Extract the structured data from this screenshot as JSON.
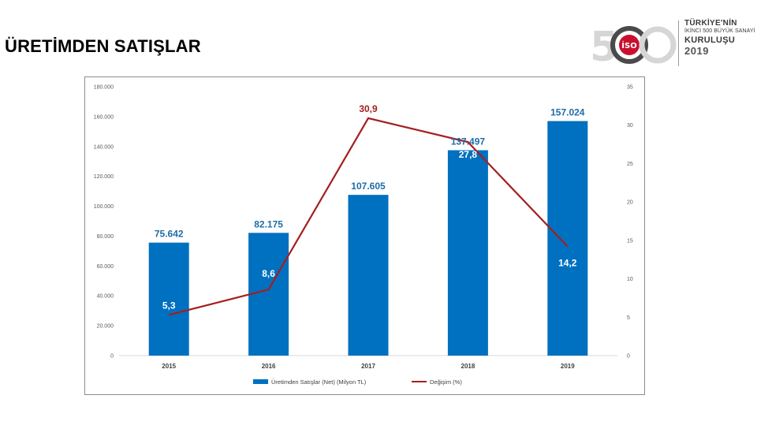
{
  "slide": {
    "title": "ÜRETİMDEN SATIŞLAR"
  },
  "logo": {
    "number": "500",
    "badge": "İSO",
    "line1": "TÜRKİYE'NİN",
    "line2": "İKİNCİ 500 BÜYÜK SANAYİ",
    "line3": "KURULUŞU",
    "line4": "2019"
  },
  "colors": {
    "bar": "#0070c0",
    "line": "#a31f1f",
    "bar_label": "#1f6ca7"
  },
  "chart_data": {
    "type": "bar",
    "categories": [
      "2015",
      "2016",
      "2017",
      "2018",
      "2019"
    ],
    "series": [
      {
        "name": "Üretimden Satışlar (Net) (Milyon TL)",
        "type": "bar",
        "axis": "left",
        "values": [
          75642,
          82175,
          107605,
          137497,
          157024
        ],
        "labels": [
          "75.642",
          "82.175",
          "107.605",
          "137.497",
          "157.024"
        ]
      },
      {
        "name": "Değişim (%)",
        "type": "line",
        "axis": "right",
        "values": [
          5.3,
          8.6,
          30.9,
          27.8,
          14.2
        ],
        "labels": [
          "5,3",
          "8,6",
          "30,9",
          "27,8",
          "14,2"
        ]
      }
    ],
    "y_left": {
      "range": [
        0,
        180000
      ],
      "ticks": [
        "0",
        "20.000",
        "40.000",
        "60.000",
        "80.000",
        "100.000",
        "120.000",
        "140.000",
        "160.000",
        "180.000"
      ]
    },
    "y_right": {
      "range": [
        0,
        35
      ],
      "ticks": [
        "0",
        "5",
        "10",
        "15",
        "20",
        "25",
        "30",
        "35"
      ]
    },
    "grid": false,
    "legend_position": "bottom"
  }
}
